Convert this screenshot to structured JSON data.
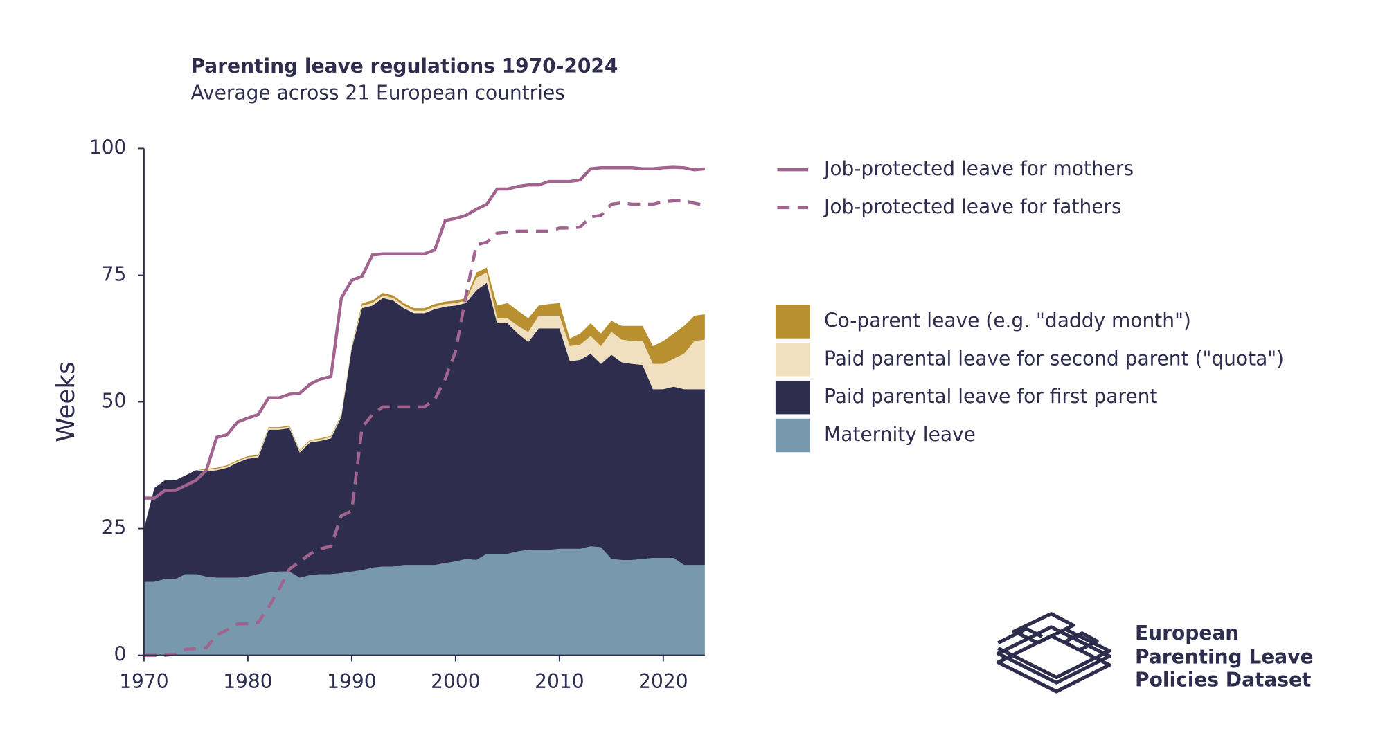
{
  "chart_data": {
    "type": "area",
    "title": "Parenting leave regulations 1970-2024",
    "subtitle": "Average across 21 European countries",
    "y_label": "Weeks",
    "x": [
      1970,
      1971,
      1972,
      1973,
      1974,
      1975,
      1976,
      1977,
      1978,
      1979,
      1980,
      1981,
      1982,
      1983,
      1984,
      1985,
      1986,
      1987,
      1988,
      1989,
      1990,
      1991,
      1992,
      1993,
      1994,
      1995,
      1996,
      1997,
      1998,
      1999,
      2000,
      2001,
      2002,
      2003,
      2004,
      2005,
      2006,
      2007,
      2008,
      2009,
      2010,
      2011,
      2012,
      2013,
      2014,
      2015,
      2016,
      2017,
      2018,
      2019,
      2020,
      2021,
      2022,
      2023,
      2024
    ],
    "xlim": [
      1970,
      2024
    ],
    "xticks": [
      1970,
      1980,
      1990,
      2000,
      2010,
      2020
    ],
    "ylim": [
      0,
      100
    ],
    "yticks": [
      0,
      25,
      50,
      75,
      100
    ],
    "series": [
      {
        "name": "Maternity leave",
        "style": "area",
        "color": "#7899ad",
        "values": [
          14.5,
          14.5,
          15,
          15,
          16,
          16,
          15.5,
          15.3,
          15.3,
          15.3,
          15.5,
          16,
          16.3,
          16.5,
          16.5,
          15.3,
          15.8,
          16,
          16,
          16.2,
          16.5,
          16.8,
          17.3,
          17.5,
          17.5,
          17.8,
          17.8,
          17.8,
          17.8,
          18.2,
          18.5,
          19,
          18.8,
          20,
          20,
          20,
          20.5,
          20.8,
          20.8,
          20.8,
          21,
          21,
          21,
          21.5,
          21.3,
          19,
          18.8,
          18.8,
          19,
          19.2,
          19.2,
          19.2,
          17.8,
          17.8,
          17.8
        ]
      },
      {
        "name": "Paid parental leave for first parent",
        "style": "area",
        "color": "#2e2d4d",
        "values": [
          10.5,
          18.5,
          19.5,
          19.5,
          19.5,
          20.5,
          20.8,
          21.2,
          21.7,
          22.7,
          23.3,
          23,
          28.2,
          28,
          28.3,
          24.7,
          26.2,
          26.3,
          26.8,
          30.8,
          44,
          51.7,
          51.7,
          53,
          52.5,
          50.7,
          49.7,
          49.7,
          50.5,
          50.6,
          50.5,
          50.5,
          53.2,
          53.5,
          45.5,
          45.5,
          43,
          41,
          43.7,
          43.7,
          43.5,
          37,
          37.3,
          38,
          36.2,
          40.3,
          39,
          38.7,
          38.3,
          33.3,
          33.3,
          33.8,
          34.7,
          34.7,
          34.7
        ]
      },
      {
        "name": "Paid parental leave for second parent (\"quota\")",
        "style": "area",
        "color": "#f0e0c0",
        "values": [
          0,
          0,
          0,
          0,
          0,
          0,
          0.3,
          0.3,
          0.3,
          0.3,
          0.3,
          0.3,
          0.3,
          0.3,
          0.3,
          0.3,
          0.3,
          0.3,
          0.3,
          0.3,
          0.3,
          0.5,
          0.5,
          0.5,
          0.5,
          0.5,
          0.5,
          0.5,
          0.5,
          0.5,
          0.5,
          0.5,
          2.5,
          2,
          1,
          1,
          1.5,
          2,
          2.5,
          2.5,
          2.5,
          3,
          3,
          3.5,
          3.5,
          4.5,
          4.5,
          4.5,
          4.8,
          5,
          5,
          5.5,
          7,
          9.5,
          9.8
        ]
      },
      {
        "name": "Co-parent leave (e.g. \"daddy month\")",
        "style": "area",
        "color": "#b89030",
        "values": [
          0,
          0,
          0,
          0,
          0,
          0,
          0.2,
          0.2,
          0.2,
          0.2,
          0.2,
          0.2,
          0.2,
          0.2,
          0.2,
          0.2,
          0.2,
          0.2,
          0.2,
          0.2,
          0.2,
          0.5,
          0.5,
          0.5,
          0.5,
          0.5,
          0.5,
          0.5,
          0.5,
          0.5,
          0.5,
          0.5,
          1,
          1,
          2.5,
          3,
          3,
          2.7,
          2,
          2.3,
          2.5,
          1.5,
          2.2,
          2.5,
          2.5,
          2.2,
          2.7,
          3,
          2.9,
          3.5,
          4.5,
          5,
          5.5,
          5,
          5
        ]
      },
      {
        "name": "Job-protected leave for mothers",
        "style": "line",
        "color": "#a0648e",
        "values": [
          31,
          31,
          32.5,
          32.5,
          33.5,
          34.5,
          36.5,
          43,
          43.5,
          46,
          46.8,
          47.5,
          50.8,
          50.8,
          51.5,
          51.7,
          53.5,
          54.5,
          55,
          70.5,
          74,
          74.8,
          79,
          79.2,
          79.2,
          79.2,
          79.2,
          79.2,
          80,
          85.8,
          86.2,
          86.8,
          88,
          89,
          92,
          92,
          92.5,
          92.8,
          92.8,
          93.5,
          93.5,
          93.5,
          93.8,
          96,
          96.2,
          96.2,
          96.2,
          96.2,
          96,
          96,
          96.2,
          96.3,
          96.2,
          95.8,
          96
        ]
      },
      {
        "name": "Job-protected leave for fathers",
        "style": "dashed",
        "color": "#a0648e",
        "values": [
          0,
          0,
          0,
          0.2,
          1.2,
          1.3,
          1.5,
          4,
          5,
          6.2,
          6.2,
          6.5,
          9.5,
          13,
          17,
          18.5,
          20,
          21,
          21.5,
          27.5,
          28.5,
          45,
          47.5,
          49,
          49,
          49,
          49,
          49,
          50.5,
          54.5,
          60,
          71,
          81,
          81.5,
          83.3,
          83.5,
          83.7,
          83.7,
          83.7,
          83.7,
          84.3,
          84.3,
          84.5,
          86.5,
          86.8,
          89,
          89.3,
          89,
          89,
          89,
          89.5,
          89.7,
          89.7,
          89.2,
          88.8
        ]
      }
    ]
  },
  "logo": {
    "lines": [
      "European",
      "Parenting Leave",
      "Policies Dataset"
    ]
  }
}
